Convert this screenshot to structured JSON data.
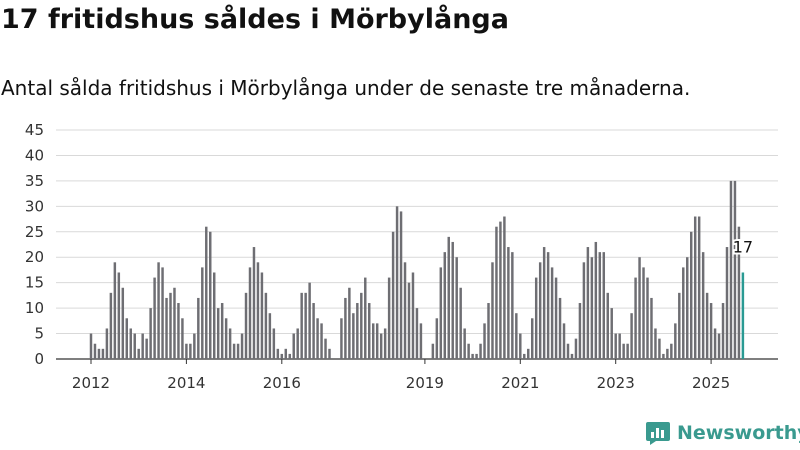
{
  "header": {
    "title": "17 fritidshus såldes i Mörbylånga",
    "subtitle": "Antal sålda fritidshus i Mörbylånga under de senaste tre månaderna."
  },
  "brand": {
    "name": "Newsworthy",
    "icon": "bar-chart-icon",
    "color": "#3a9a8f"
  },
  "colors": {
    "bar": "#6e6e73",
    "highlight": "#2a9a93",
    "grid": "#d9d9d9",
    "axis": "#333333"
  },
  "chart_data": {
    "type": "bar",
    "title": "17 fritidshus såldes i Mörbylånga",
    "subtitle": "Antal sålda fritidshus i Mörbylånga under de senaste tre månaderna.",
    "xlabel": "",
    "ylabel": "",
    "ylim": [
      0,
      45
    ],
    "yticks": [
      0,
      5,
      10,
      15,
      20,
      25,
      30,
      35,
      40,
      45
    ],
    "xticks": [
      {
        "label": "2012",
        "x": 2012
      },
      {
        "label": "2014",
        "x": 2014
      },
      {
        "label": "2016",
        "x": 2016
      },
      {
        "label": "2019",
        "x": 2019
      },
      {
        "label": "2021",
        "x": 2021
      },
      {
        "label": "2023",
        "x": 2023
      },
      {
        "label": "2025",
        "x": 2025
      }
    ],
    "grid": true,
    "start": "2012-01",
    "frequency": "monthly",
    "values": [
      5,
      3,
      2,
      2,
      6,
      13,
      19,
      17,
      14,
      8,
      6,
      5,
      2,
      5,
      4,
      10,
      16,
      19,
      18,
      12,
      13,
      14,
      11,
      8,
      3,
      3,
      5,
      12,
      18,
      26,
      25,
      17,
      10,
      11,
      8,
      6,
      3,
      3,
      5,
      13,
      18,
      22,
      19,
      17,
      13,
      9,
      6,
      2,
      1,
      2,
      1,
      5,
      6,
      13,
      13,
      15,
      11,
      8,
      7,
      4,
      2,
      null,
      null,
      8,
      12,
      14,
      9,
      11,
      13,
      16,
      11,
      7,
      7,
      5,
      6,
      16,
      25,
      30,
      29,
      19,
      15,
      17,
      10,
      7,
      null,
      null,
      3,
      8,
      18,
      21,
      24,
      23,
      20,
      14,
      6,
      3,
      1,
      1,
      3,
      7,
      11,
      19,
      26,
      27,
      28,
      22,
      21,
      9,
      5,
      1,
      2,
      8,
      16,
      19,
      22,
      21,
      18,
      16,
      12,
      7,
      3,
      1,
      4,
      11,
      19,
      22,
      20,
      23,
      21,
      21,
      13,
      10,
      5,
      5,
      3,
      3,
      9,
      16,
      20,
      18,
      16,
      12,
      6,
      4,
      1,
      2,
      3,
      7,
      13,
      18,
      20,
      25,
      28,
      28,
      21,
      13,
      11,
      6,
      5,
      11,
      22,
      35,
      35,
      26,
      17
    ],
    "highlight_last": true,
    "annotation": {
      "label": "17",
      "value": 17,
      "date": "2025-09"
    }
  }
}
